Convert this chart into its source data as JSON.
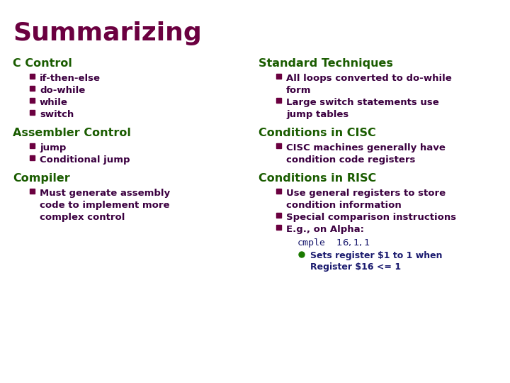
{
  "title": "Summarizing",
  "title_color": "#6B0040",
  "title_fontsize": 26,
  "background_color": "#FFFFFF",
  "heading_color": "#1A5C00",
  "text_color": "#3B0040",
  "bullet_color": "#6B0040",
  "mono_color": "#1A1A6E",
  "sub_text_color": "#1A1A6E",
  "green_dot_color": "#1A7A00",
  "left_col": {
    "sections": [
      {
        "heading": "C Control",
        "bullets": [
          "if-then-else",
          "do-while",
          "while",
          "switch"
        ]
      },
      {
        "heading": "Assembler Control",
        "bullets": [
          "jump",
          "Conditional jump"
        ]
      },
      {
        "heading": "Compiler",
        "bullets": [
          "Must generate assembly\ncode to implement more\ncomplex control"
        ]
      }
    ]
  },
  "right_col": {
    "sections": [
      {
        "heading": "Standard Techniques",
        "bullets": [
          "All loops converted to do-while\nform",
          "Large switch statements use\njump tables"
        ]
      },
      {
        "heading": "Conditions in CISC",
        "bullets": [
          "CISC machines generally have\ncondition code registers"
        ]
      },
      {
        "heading": "Conditions in RISC",
        "bullets": [
          "Use general registers to store\ncondition information",
          "Special comparison instructions",
          "E.g., on Alpha:"
        ],
        "mono_line": "cmple  $16,1,$1",
        "sub_bullet": "Sets register $1 to 1 when\nRegister $16 <= 1"
      }
    ]
  }
}
